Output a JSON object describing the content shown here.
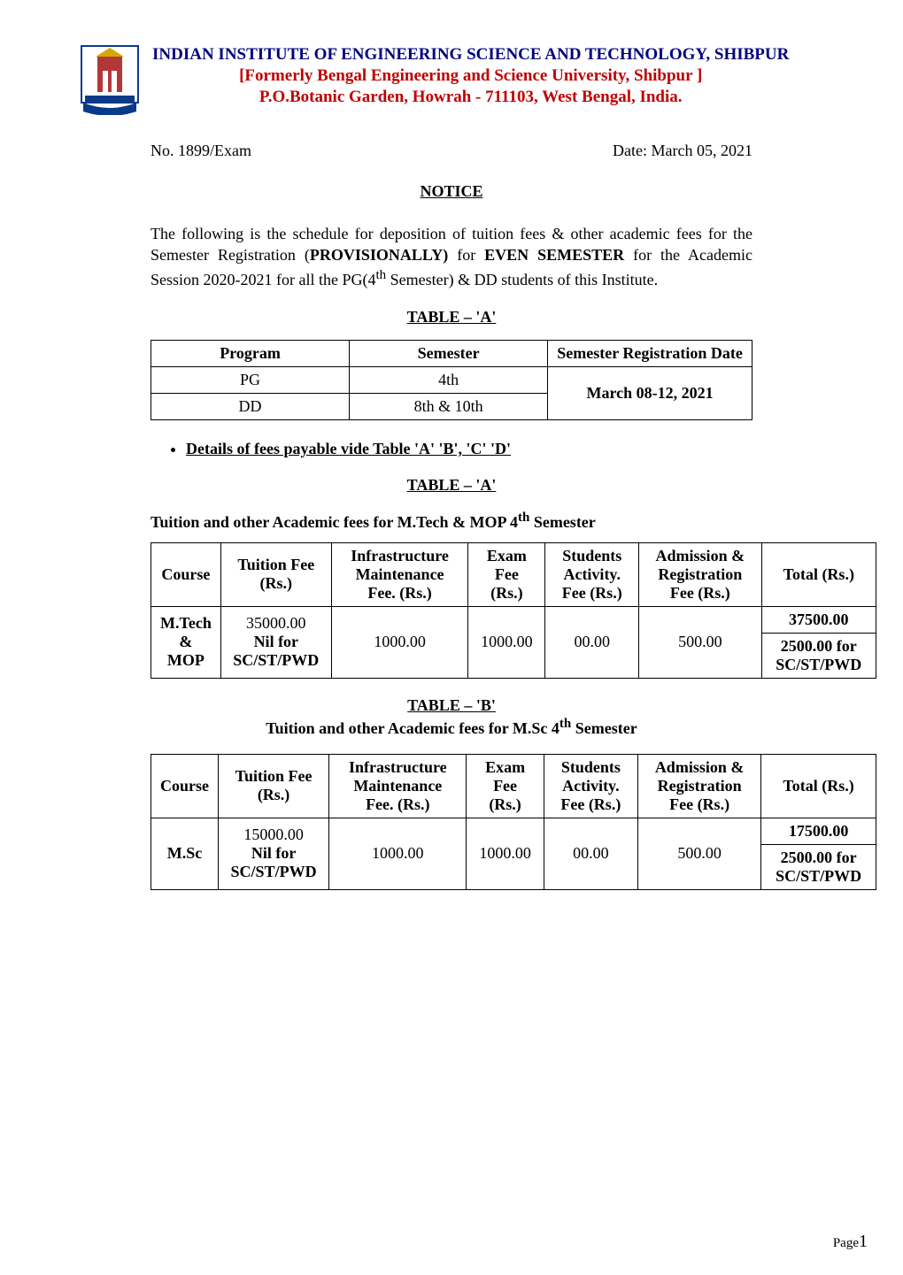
{
  "institution": {
    "line1": "INDIAN INSTITUTE OF ENGINEERING SCIENCE AND TECHNOLOGY, SHIBPUR",
    "line2": "[Formerly Bengal Engineering and Science University, Shibpur ]",
    "line3": "P.O.Botanic Garden, Howrah - 711103, West Bengal, India."
  },
  "ref": {
    "no": "No. 1899/Exam",
    "date": "Date: March 05, 2021"
  },
  "notice_label": "NOTICE",
  "paragraph_html": "The following is the schedule for deposition of tuition fees & other academic fees for the Semester Registration (<b>PROVISIONALLY)</b> for <b>EVEN SEMESTER</b> for the Academic Session 2020-2021 for all the PG(4<sup>th</sup> Semester) & DD students of this Institute.",
  "table_a1": {
    "heading": "TABLE – 'A'",
    "cols": [
      "Program",
      "Semester",
      "Semester Registration Date"
    ],
    "rows": [
      [
        "PG",
        "4th"
      ],
      [
        "DD",
        "8th & 10th"
      ]
    ],
    "reg_date": "March 08-12,  2021"
  },
  "bullet": "Details of fees payable vide Table 'A' 'B', 'C' 'D'",
  "table_a2": {
    "heading": "TABLE – 'A'",
    "subhead_html": "Tuition and other Academic fees for M.Tech & MOP  4<sup>th</sup> Semester",
    "cols": [
      "Course",
      "Tuition Fee (Rs.)",
      "Infrastructure Maintenance Fee. (Rs.)",
      "Exam Fee (Rs.)",
      "Students Activity. Fee (Rs.)",
      "Admission & Registration Fee (Rs.)",
      "Total (Rs.)"
    ],
    "course_html": "<b>M.Tech<br>&<br>MOP</b>",
    "tuition_html": "35000.00<br><b>Nil for SC/ST/PWD</b>",
    "infra": "1000.00",
    "exam": "1000.00",
    "activity": "00.00",
    "admission": "500.00",
    "total1": "37500.00",
    "total2_html": "<b>2500.00 for SC/ST/PWD</b>"
  },
  "table_b": {
    "heading": "TABLE – 'B'",
    "subhead_html": "Tuition and other Academic fees for M.Sc 4<sup>th</sup> Semester",
    "cols": [
      "Course",
      "Tuition Fee (Rs.)",
      "Infrastructure Maintenance Fee. (Rs.)",
      "Exam Fee (Rs.)",
      "Students Activity. Fee (Rs.)",
      "Admission & Registration Fee (Rs.)",
      "Total (Rs.)"
    ],
    "course": "M.Sc",
    "tuition_html": "15000.00<br><b>Nil for SC/ST/PWD</b>",
    "infra": "1000.00",
    "exam": "1000.00",
    "activity": "00.00",
    "admission": "500.00",
    "total1": "17500.00",
    "total2_html": "<b>2500.00 for SC/ST/PWD</b>"
  },
  "colors": {
    "inst_navy": "#000080",
    "inst_red": "#c00000",
    "logo_building": "#b23838",
    "logo_ribbon": "#0a3a8a",
    "logo_gold": "#d4a900"
  },
  "page_label": "Page",
  "page_no": "1"
}
